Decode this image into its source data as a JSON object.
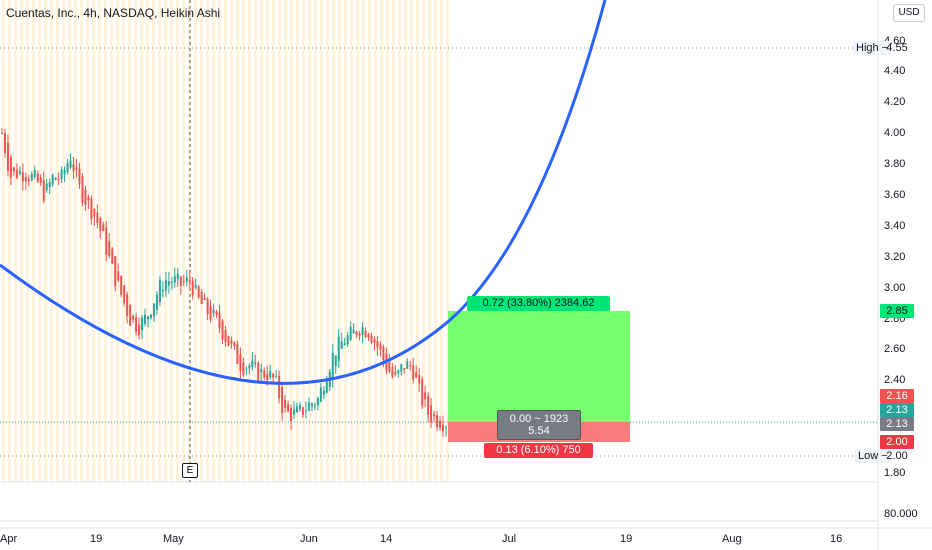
{
  "header": {
    "title": "Cuentas, Inc., 4h, NASDAQ, Heikin Ashi"
  },
  "currency": "USD",
  "y_axis": {
    "ticks": [
      "4.60",
      "4.40",
      "4.20",
      "4.00",
      "3.80",
      "3.60",
      "3.40",
      "3.20",
      "3.00",
      "2.80",
      "2.60",
      "2.40",
      "1.80"
    ]
  },
  "x_axis": {
    "ticks": [
      "Apr",
      "19",
      "May",
      "Jun",
      "14",
      "Jul",
      "19",
      "Aug",
      "16"
    ]
  },
  "high": {
    "label": "High",
    "value": "4.55"
  },
  "low": {
    "label": "Low",
    "value": "2.00"
  },
  "price_badges": [
    {
      "value": "2.85",
      "color": "#00e676"
    },
    {
      "value": "2.16",
      "color": "#ef5350"
    },
    {
      "value": "2.13",
      "color": "#26a69a"
    },
    {
      "value": "2.13",
      "color": "#787b86"
    },
    {
      "value": "2.00",
      "color": "#f23645"
    }
  ],
  "position": {
    "profit_label": "0.72 (33.80%) 2384.62",
    "stop_label": "0.13 (6.10%) 750",
    "center_line1": "0.00 ~ 1923",
    "center_line2": "5.54"
  },
  "earnings_marker": "E",
  "volume_pane": {
    "value": "80.000"
  },
  "chart_data": {
    "type": "candlestick",
    "title": "Cuentas, Inc., 4h, NASDAQ, Heikin Ashi",
    "x_ticks": [
      "Apr",
      "19",
      "May",
      "Jun",
      "14",
      "Jul",
      "19",
      "Aug",
      "16"
    ],
    "y_ticks": [
      4.6,
      4.4,
      4.2,
      4.0,
      3.8,
      3.6,
      3.4,
      3.2,
      3.0,
      2.8,
      2.6,
      2.4,
      1.8
    ],
    "high": 4.55,
    "low": 2.0,
    "last_price": 2.13,
    "long_position": {
      "entry": 2.13,
      "target": 2.85,
      "stop": 2.0
    },
    "trend": [
      4.0,
      3.72,
      3.75,
      3.73,
      3.7,
      3.6,
      3.72,
      3.71,
      3.86,
      3.65,
      3.55,
      3.45,
      3.3,
      3.1,
      2.95,
      2.8,
      2.75,
      2.82,
      2.95,
      3.05,
      3.05,
      3.02,
      3.05,
      2.92,
      2.85,
      2.8,
      2.7,
      2.6,
      2.5,
      2.5,
      2.45,
      2.45,
      2.4,
      2.2,
      2.18,
      2.2,
      2.25,
      2.28,
      2.45,
      2.6,
      2.66,
      2.7,
      2.75,
      2.72,
      2.62,
      2.5,
      2.4,
      2.5,
      2.5,
      2.3,
      2.18,
      2.15,
      2.13
    ]
  }
}
